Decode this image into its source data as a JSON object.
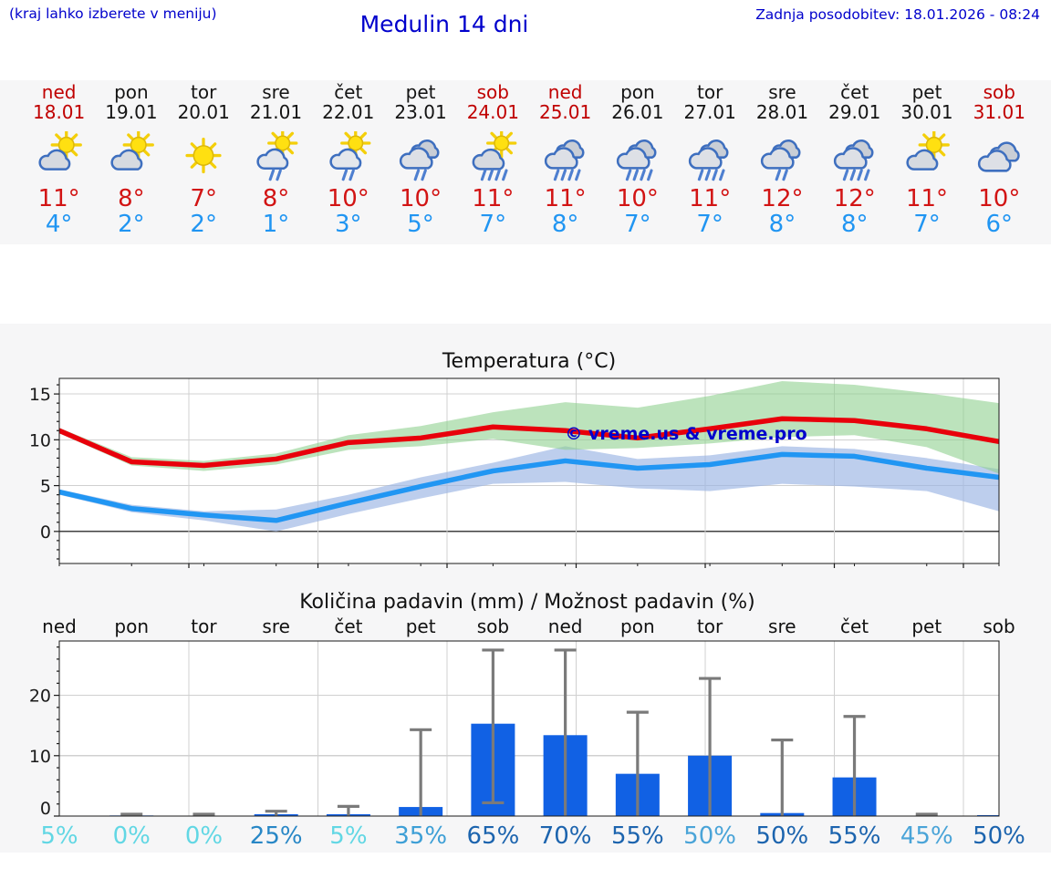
{
  "header": {
    "hint": "(kraj lahko izberete v meniju)",
    "title": "Medulin 14 dni",
    "updated": "Zadnja posodobitev: 18.01.2026 - 08:24"
  },
  "colors": {
    "header_blue": "#0000cc",
    "holiday_red": "#c00000",
    "weekday_black": "#141414",
    "tmax_red": "#d21414",
    "tmin_blue": "#2095f2",
    "figure_bg": "#f6f6f7",
    "plot_bg": "#ffffff",
    "grid": "#d0d0d0",
    "zero_line": "#404040",
    "axis": "#1a1a1a",
    "bar_blue": "#1161e4",
    "error_gray": "#7a7a7a"
  },
  "days": [
    {
      "name": "ned",
      "date": "18.01",
      "holiday": true,
      "icon": "partly-cloudy",
      "tmax": "11°",
      "tmin": "4°"
    },
    {
      "name": "pon",
      "date": "19.01",
      "holiday": false,
      "icon": "partly-cloudy",
      "tmax": "8°",
      "tmin": "2°"
    },
    {
      "name": "tor",
      "date": "20.01",
      "holiday": false,
      "icon": "sunny",
      "tmax": "7°",
      "tmin": "2°"
    },
    {
      "name": "sre",
      "date": "21.01",
      "holiday": false,
      "icon": "sun-light-rain",
      "tmax": "8°",
      "tmin": "1°"
    },
    {
      "name": "čet",
      "date": "22.01",
      "holiday": false,
      "icon": "sun-light-rain",
      "tmax": "10°",
      "tmin": "3°"
    },
    {
      "name": "pet",
      "date": "23.01",
      "holiday": false,
      "icon": "light-rain",
      "tmax": "10°",
      "tmin": "5°"
    },
    {
      "name": "sob",
      "date": "24.01",
      "holiday": true,
      "icon": "sun-rain",
      "tmax": "11°",
      "tmin": "7°"
    },
    {
      "name": "ned",
      "date": "25.01",
      "holiday": true,
      "icon": "rain",
      "tmax": "11°",
      "tmin": "8°"
    },
    {
      "name": "pon",
      "date": "26.01",
      "holiday": false,
      "icon": "rain",
      "tmax": "10°",
      "tmin": "7°"
    },
    {
      "name": "tor",
      "date": "27.01",
      "holiday": false,
      "icon": "rain",
      "tmax": "11°",
      "tmin": "7°"
    },
    {
      "name": "sre",
      "date": "28.01",
      "holiday": false,
      "icon": "light-rain",
      "tmax": "12°",
      "tmin": "8°"
    },
    {
      "name": "čet",
      "date": "29.01",
      "holiday": false,
      "icon": "rain",
      "tmax": "12°",
      "tmin": "8°"
    },
    {
      "name": "pet",
      "date": "30.01",
      "holiday": false,
      "icon": "partly-cloudy",
      "tmax": "11°",
      "tmin": "7°"
    },
    {
      "name": "sob",
      "date": "31.01",
      "holiday": true,
      "icon": "cloudy",
      "tmax": "10°",
      "tmin": "6°"
    }
  ],
  "chart_data": [
    {
      "type": "line",
      "title": "Temperatura (°C)",
      "x": [
        "18.01",
        "19.01",
        "20.01",
        "21.01",
        "22.01",
        "23.01",
        "24.01",
        "25.01",
        "26.01",
        "27.01",
        "28.01",
        "29.01",
        "30.01",
        "31.01"
      ],
      "series": [
        {
          "name": "max-temperature",
          "color": "#e8000b",
          "values": [
            11.0,
            7.6,
            7.2,
            7.9,
            9.7,
            10.2,
            11.4,
            11.0,
            10.2,
            11.2,
            12.3,
            12.1,
            11.2,
            9.8
          ]
        },
        {
          "name": "min-temperature",
          "color": "#2196f3",
          "values": [
            4.3,
            2.5,
            1.8,
            1.2,
            3.1,
            4.9,
            6.6,
            7.7,
            6.9,
            7.3,
            8.4,
            8.2,
            6.9,
            5.9
          ]
        }
      ],
      "bands": [
        {
          "name": "min-temperature-range",
          "color": "#9ab4e4",
          "opacity": 0.65,
          "upper": [
            4.6,
            2.9,
            2.2,
            2.4,
            4.0,
            5.9,
            7.5,
            9.3,
            7.9,
            8.3,
            9.3,
            9.0,
            8.0,
            6.8
          ],
          "lower": [
            4.0,
            2.1,
            1.2,
            0.0,
            1.9,
            3.6,
            5.2,
            5.4,
            4.7,
            4.4,
            5.2,
            4.9,
            4.4,
            2.2
          ]
        },
        {
          "name": "max-temperature-range",
          "color": "#8fd08f",
          "opacity": 0.6,
          "upper": [
            11.3,
            8.1,
            7.7,
            8.5,
            10.5,
            11.5,
            13.0,
            14.1,
            13.5,
            14.8,
            16.4,
            16.0,
            15.1,
            14.0
          ],
          "lower": [
            10.7,
            7.2,
            6.6,
            7.3,
            8.9,
            9.3,
            10.1,
            8.9,
            9.1,
            9.6,
            10.3,
            10.5,
            9.2,
            6.3
          ]
        }
      ],
      "yticks": [
        0,
        5,
        10,
        15
      ],
      "ylim": [
        -3.5,
        16.7
      ],
      "grid": true,
      "legend": "none",
      "watermark": {
        "text": "© vreme.us & vreme.pro",
        "color": "#0000cc"
      }
    },
    {
      "type": "bar",
      "title": "Količina padavin (mm) / Možnost padavin (%)",
      "categories": [
        "ned",
        "pon",
        "tor",
        "sre",
        "čet",
        "pet",
        "sob",
        "ned",
        "pon",
        "tor",
        "sre",
        "čet",
        "pet",
        "sob"
      ],
      "values": [
        0.05,
        0.1,
        0.05,
        0.3,
        0.3,
        1.5,
        15.3,
        13.4,
        7.0,
        10.0,
        0.5,
        6.4,
        0.05,
        0.15
      ],
      "bar_color": "#1161e4",
      "error_bars": [
        null,
        [
          0,
          0.3
        ],
        [
          0,
          0.3
        ],
        [
          0,
          0.8
        ],
        [
          0,
          1.6
        ],
        [
          0,
          14.3
        ],
        [
          2.2,
          27.5
        ],
        [
          0,
          27.5
        ],
        [
          0,
          17.2
        ],
        [
          0,
          22.8
        ],
        [
          0,
          12.6
        ],
        [
          0,
          16.5
        ],
        [
          0,
          0.3
        ],
        null
      ],
      "error_color": "#7a7a7a",
      "probabilities": [
        {
          "label": "5%",
          "color": "#62d7e4"
        },
        {
          "label": "0%",
          "color": "#62d7e4"
        },
        {
          "label": "0%",
          "color": "#62d7e4"
        },
        {
          "label": "25%",
          "color": "#2887c6"
        },
        {
          "label": "5%",
          "color": "#62d7e4"
        },
        {
          "label": "35%",
          "color": "#3d9fd6"
        },
        {
          "label": "65%",
          "color": "#1c64ae"
        },
        {
          "label": "70%",
          "color": "#1c64ae"
        },
        {
          "label": "55%",
          "color": "#1c64ae"
        },
        {
          "label": "50%",
          "color": "#4aa4d8"
        },
        {
          "label": "50%",
          "color": "#1c64ae"
        },
        {
          "label": "55%",
          "color": "#1c64ae"
        },
        {
          "label": "45%",
          "color": "#4aa4d8"
        },
        {
          "label": "50%",
          "color": "#1c64ae"
        }
      ],
      "yticks": [
        0,
        10,
        20
      ],
      "ylim": [
        0,
        29
      ],
      "grid": true
    }
  ]
}
